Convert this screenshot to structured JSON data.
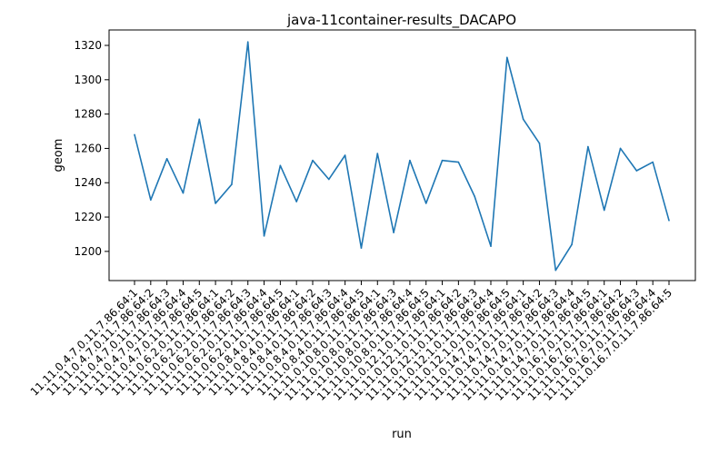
{
  "chart_data": {
    "type": "line",
    "title": "java-11container-results_DACAPO",
    "xlabel": "run",
    "ylabel": "geom",
    "ylim": [
      1183,
      1329
    ],
    "yticks": [
      1200,
      1220,
      1240,
      1260,
      1280,
      1300,
      1320
    ],
    "grid": false,
    "legend": "none",
    "color": "#1f77b4",
    "categories": [
      "11.11.0.4.7.0.11.7.86.64:1",
      "11.11.0.4.7.0.11.7.86.64:2",
      "11.11.0.4.7.0.11.7.86.64:3",
      "11.11.0.4.7.0.11.7.86.64:4",
      "11.11.0.4.7.0.11.7.86.64:5",
      "11.11.0.6.2.0.11.7.86.64:1",
      "11.11.0.6.2.0.11.7.86.64:2",
      "11.11.0.6.2.0.11.7.86.64:3",
      "11.11.0.6.2.0.11.7.86.64:4",
      "11.11.0.6.2.0.11.7.86.64:5",
      "11.11.0.8.4.0.11.7.86.64:1",
      "11.11.0.8.4.0.11.7.86.64:2",
      "11.11.0.8.4.0.11.7.86.64:3",
      "11.11.0.8.4.0.11.7.86.64:4",
      "11.11.0.8.4.0.11.7.86.64:5",
      "11.11.0.10.8.0.11.7.86.64:1",
      "11.11.0.10.8.0.11.7.86.64:3",
      "11.11.0.10.8.0.11.7.86.64:4",
      "11.11.0.10.8.0.11.7.86.64:5",
      "11.11.0.12.1.0.11.7.86.64:1",
      "11.11.0.12.1.0.11.7.86.64:2",
      "11.11.0.12.1.0.11.7.86.64:3",
      "11.11.0.12.1.0.11.7.86.64:4",
      "11.11.0.12.1.0.11.7.86.64:5",
      "11.11.0.14.7.0.11.7.86.64:1",
      "11.11.0.14.7.0.11.7.86.64:2",
      "11.11.0.14.7.0.11.7.86.64:3",
      "11.11.0.14.7.0.11.7.86.64:4",
      "11.11.0.14.7.0.11.7.86.64:5",
      "11.11.0.16.7.0.11.7.86.64:1",
      "11.11.0.16.7.0.11.7.86.64:2",
      "11.11.0.16.7.0.11.7.86.64:3",
      "11.11.0.16.7.0.11.7.86.64:4",
      "11.11.0.16.7.0.11.7.86.64:5"
    ],
    "values": [
      1268,
      1230,
      1254,
      1234,
      1277,
      1228,
      1239,
      1322,
      1209,
      1250,
      1229,
      1253,
      1242,
      1256,
      1202,
      1257,
      1211,
      1253,
      1228,
      1253,
      1252,
      1232,
      1203,
      1313,
      1277,
      1263,
      1189,
      1204,
      1261,
      1224,
      1260,
      1247,
      1252,
      1218
    ]
  }
}
